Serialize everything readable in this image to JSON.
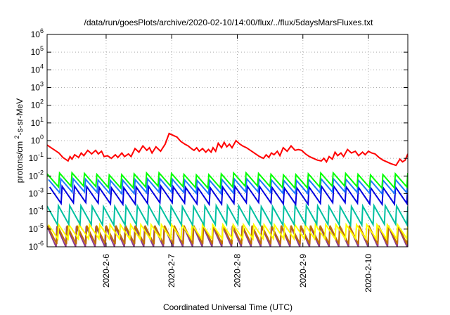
{
  "chart_data": {
    "type": "line",
    "title": "/data/run/goesPlots/archive/2020-02-10/14:00/flux/../flux/5daysMarsFluxes.txt",
    "xlabel": "Coordinated Universal Time (UTC)",
    "ylabel": "protons/cm²-s-sr-MeV",
    "y_scale": "log",
    "ylim_exp": [
      -6,
      6
    ],
    "ytick_base": "10",
    "ytick_exponents": [
      "-6",
      "-5",
      "-4",
      "-3",
      "-2",
      "-1",
      "0",
      "1",
      "2",
      "3",
      "4",
      "5",
      "6"
    ],
    "xlim_days": [
      5.1,
      10.6
    ],
    "xtick_positions": [
      6,
      7,
      8,
      9,
      10
    ],
    "xtick_labels": [
      "2020-2-6",
      "2020-2-7",
      "2020-2-8",
      "2020-2-9",
      "2020-2-10"
    ],
    "grid": true,
    "legend": "none",
    "series": [
      {
        "color": "#ff0000",
        "points": [
          [
            5.1,
            -0.25
          ],
          [
            5.22,
            -0.55
          ],
          [
            5.28,
            -0.7
          ],
          [
            5.34,
            -0.95
          ],
          [
            5.42,
            -1.15
          ],
          [
            5.45,
            -0.9
          ],
          [
            5.48,
            -1.05
          ],
          [
            5.52,
            -0.8
          ],
          [
            5.58,
            -0.95
          ],
          [
            5.62,
            -0.7
          ],
          [
            5.66,
            -0.85
          ],
          [
            5.72,
            -0.55
          ],
          [
            5.78,
            -0.75
          ],
          [
            5.84,
            -0.55
          ],
          [
            5.88,
            -0.75
          ],
          [
            5.93,
            -0.6
          ],
          [
            5.97,
            -0.9
          ],
          [
            6.02,
            -0.85
          ],
          [
            6.08,
            -1.0
          ],
          [
            6.14,
            -0.8
          ],
          [
            6.18,
            -0.95
          ],
          [
            6.24,
            -0.7
          ],
          [
            6.28,
            -0.9
          ],
          [
            6.34,
            -0.75
          ],
          [
            6.38,
            -0.9
          ],
          [
            6.44,
            -0.45
          ],
          [
            6.5,
            -0.65
          ],
          [
            6.56,
            -0.3
          ],
          [
            6.62,
            -0.55
          ],
          [
            6.66,
            -0.4
          ],
          [
            6.7,
            -0.7
          ],
          [
            6.76,
            -0.35
          ],
          [
            6.83,
            -0.6
          ],
          [
            6.9,
            -0.2
          ],
          [
            6.96,
            0.4
          ],
          [
            7.02,
            0.3
          ],
          [
            7.08,
            0.2
          ],
          [
            7.14,
            -0.05
          ],
          [
            7.2,
            -0.2
          ],
          [
            7.25,
            -0.3
          ],
          [
            7.3,
            -0.45
          ],
          [
            7.34,
            -0.55
          ],
          [
            7.38,
            -0.4
          ],
          [
            7.42,
            -0.6
          ],
          [
            7.47,
            -0.45
          ],
          [
            7.52,
            -0.65
          ],
          [
            7.56,
            -0.5
          ],
          [
            7.6,
            -0.65
          ],
          [
            7.63,
            -0.4
          ],
          [
            7.67,
            -0.6
          ],
          [
            7.71,
            -0.15
          ],
          [
            7.76,
            -0.4
          ],
          [
            7.8,
            -0.1
          ],
          [
            7.84,
            -0.35
          ],
          [
            7.88,
            -0.2
          ],
          [
            7.92,
            -0.4
          ],
          [
            7.98,
            0.0
          ],
          [
            8.04,
            -0.2
          ],
          [
            8.08,
            -0.3
          ],
          [
            8.14,
            -0.4
          ],
          [
            8.2,
            -0.55
          ],
          [
            8.28,
            -0.75
          ],
          [
            8.34,
            -0.9
          ],
          [
            8.4,
            -1.0
          ],
          [
            8.44,
            -0.8
          ],
          [
            8.48,
            -0.95
          ],
          [
            8.52,
            -0.7
          ],
          [
            8.56,
            -0.8
          ],
          [
            8.61,
            -0.6
          ],
          [
            8.65,
            -0.85
          ],
          [
            8.7,
            -0.4
          ],
          [
            8.76,
            -0.6
          ],
          [
            8.82,
            -0.3
          ],
          [
            8.88,
            -0.55
          ],
          [
            8.93,
            -0.5
          ],
          [
            8.98,
            -0.55
          ],
          [
            9.04,
            -0.75
          ],
          [
            9.1,
            -0.9
          ],
          [
            9.16,
            -1.0
          ],
          [
            9.22,
            -1.1
          ],
          [
            9.28,
            -1.15
          ],
          [
            9.32,
            -1.0
          ],
          [
            9.36,
            -1.2
          ],
          [
            9.4,
            -0.9
          ],
          [
            9.45,
            -1.05
          ],
          [
            9.49,
            -0.65
          ],
          [
            9.53,
            -0.85
          ],
          [
            9.58,
            -0.7
          ],
          [
            9.62,
            -0.9
          ],
          [
            9.68,
            -0.5
          ],
          [
            9.74,
            -0.7
          ],
          [
            9.8,
            -0.6
          ],
          [
            9.85,
            -0.85
          ],
          [
            9.91,
            -0.65
          ],
          [
            9.95,
            -0.8
          ],
          [
            10.0,
            -0.6
          ],
          [
            10.05,
            -0.7
          ],
          [
            10.1,
            -0.75
          ],
          [
            10.16,
            -0.95
          ],
          [
            10.22,
            -1.1
          ],
          [
            10.28,
            -1.2
          ],
          [
            10.34,
            -1.3
          ],
          [
            10.42,
            -1.4
          ],
          [
            10.48,
            -1.05
          ],
          [
            10.52,
            -1.2
          ],
          [
            10.56,
            -1.1
          ],
          [
            10.6,
            -0.75
          ]
        ]
      },
      {
        "color": "#00ff00",
        "sawtooth": {
          "x0": 5.1,
          "x1": 10.6,
          "n": 29,
          "low": -2.62,
          "high": -1.88,
          "trend": 0.06
        }
      },
      {
        "color": "#1e78ff",
        "sawtooth": {
          "x0": 5.12,
          "x1": 10.6,
          "n": 29,
          "low": -2.95,
          "high": -2.2,
          "trend": 0.05
        }
      },
      {
        "color": "#0000e0",
        "sawtooth": {
          "x0": 5.14,
          "x1": 10.6,
          "n": 29,
          "low": -3.55,
          "high": -2.62,
          "trend": 0.05
        }
      },
      {
        "color": "#00c0a0",
        "sawtooth": {
          "x0": 5.1,
          "x1": 10.6,
          "n": 32,
          "low": -4.75,
          "high": -3.7,
          "trend": 0.03
        }
      },
      {
        "color": "#ffff00",
        "sawtooth": {
          "x0": 5.12,
          "x1": 10.6,
          "n": 35,
          "low": -5.55,
          "high": -4.75,
          "trend": 0.0
        }
      },
      {
        "color": "#c07000",
        "sawtooth": {
          "x0": 5.11,
          "x1": 10.6,
          "n": 37,
          "low": -5.85,
          "high": -4.8,
          "trend": 0.0
        }
      },
      {
        "color": "#8b3a8b",
        "sawtooth": {
          "x0": 5.1,
          "x1": 10.6,
          "n": 37,
          "low": -6.0,
          "high": -4.85,
          "trend": 0.0
        }
      }
    ]
  }
}
